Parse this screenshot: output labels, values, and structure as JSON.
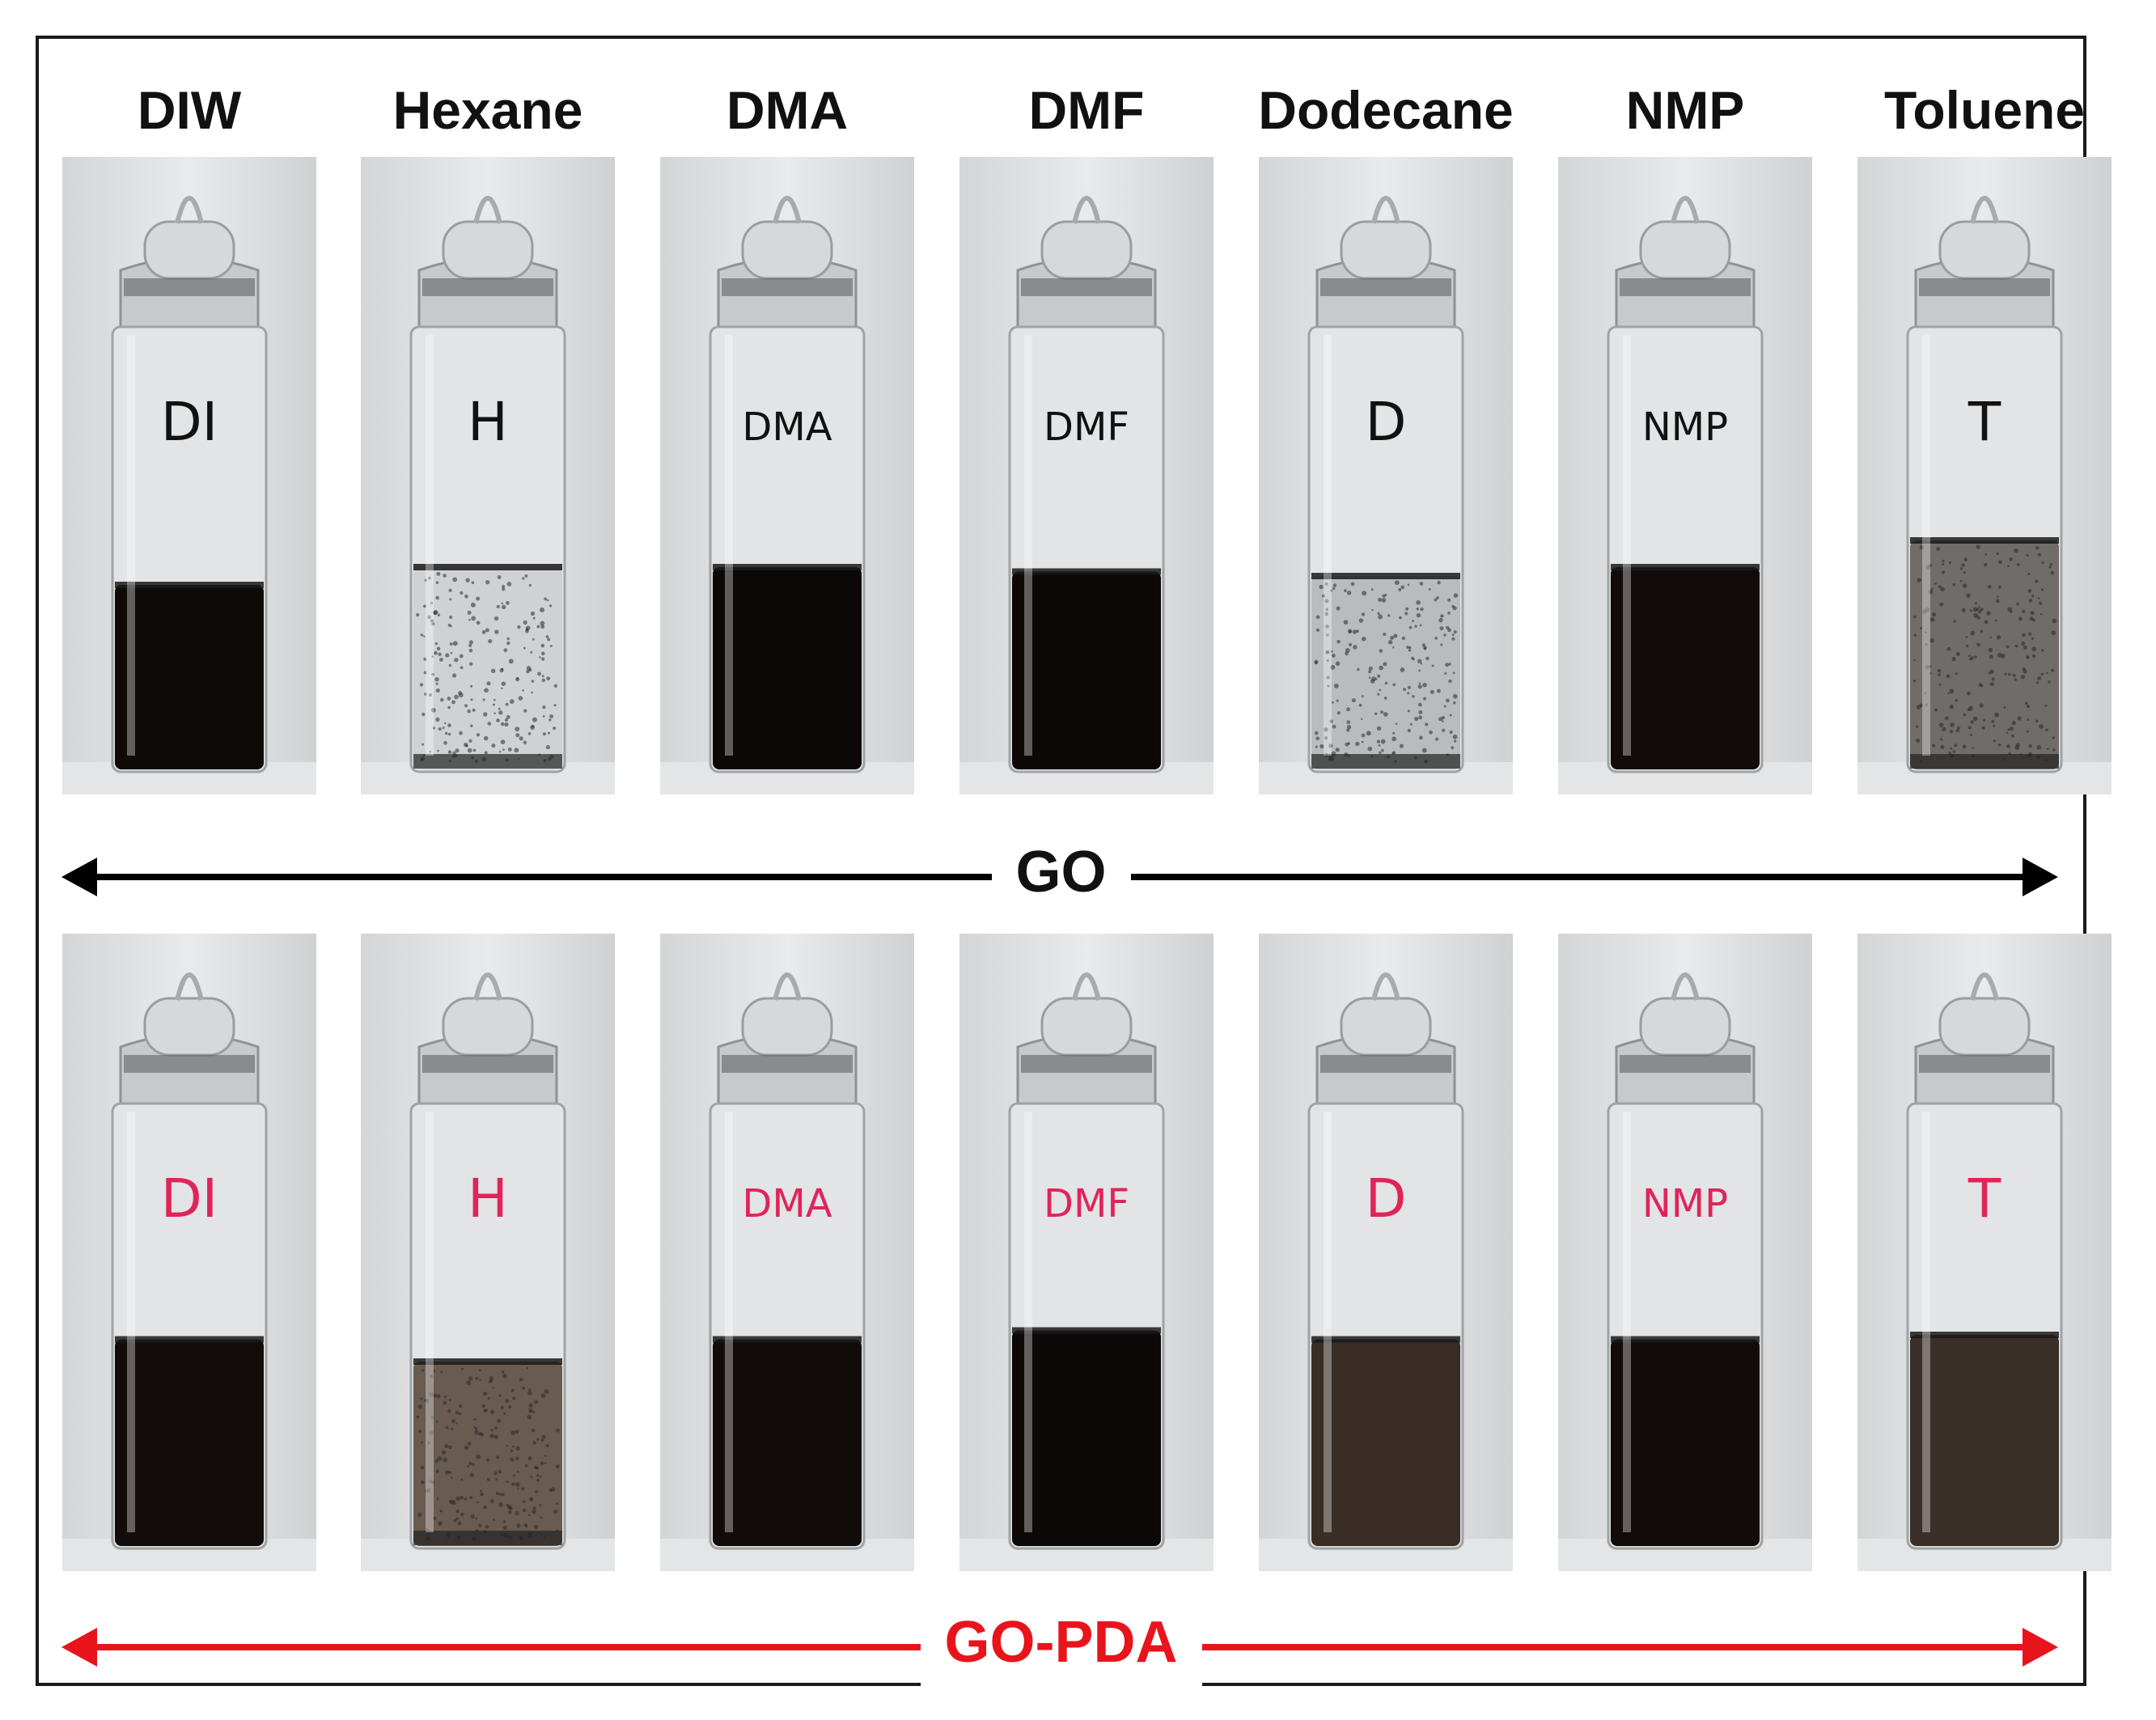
{
  "solvents": [
    "DIW",
    "Hexane",
    "DMA",
    "DMF",
    "Dodecane",
    "NMP",
    "Toluene"
  ],
  "rows": [
    {
      "label": "GO",
      "color": "#000000",
      "vials": [
        {
          "mark": "DI",
          "ink": "#111111",
          "liquid": "#0e0a08",
          "cloudy": false,
          "fill": 0.42
        },
        {
          "mark": "H",
          "ink": "#111111",
          "liquid": "#cfd2d3",
          "cloudy": true,
          "fill": 0.46
        },
        {
          "mark": "DMA",
          "ink": "#111111",
          "liquid": "#0c0807",
          "cloudy": false,
          "fill": 0.46
        },
        {
          "mark": "DMF",
          "ink": "#111111",
          "liquid": "#0c0807",
          "cloudy": false,
          "fill": 0.45
        },
        {
          "mark": "D",
          "ink": "#111111",
          "liquid": "#b8bcbd",
          "cloudy": true,
          "fill": 0.44
        },
        {
          "mark": "NMP",
          "ink": "#111111",
          "liquid": "#110c0a",
          "cloudy": false,
          "fill": 0.46
        },
        {
          "mark": "T",
          "ink": "#111111",
          "liquid": "#6f6c69",
          "cloudy": true,
          "fill": 0.52
        }
      ]
    },
    {
      "label": "GO-PDA",
      "color": "#e8141c",
      "vials": [
        {
          "mark": "DI",
          "ink": "#e0245a",
          "liquid": "#120c0a",
          "cloudy": false,
          "fill": 0.47
        },
        {
          "mark": "H",
          "ink": "#e0245a",
          "liquid": "#6a5b50",
          "cloudy": true,
          "fill": 0.42
        },
        {
          "mark": "DMA",
          "ink": "#e0245a",
          "liquid": "#110b09",
          "cloudy": false,
          "fill": 0.47
        },
        {
          "mark": "DMF",
          "ink": "#e0245a",
          "liquid": "#0c0908",
          "cloudy": false,
          "fill": 0.49
        },
        {
          "mark": "D",
          "ink": "#e0245a",
          "liquid": "#3a2d26",
          "cloudy": false,
          "fill": 0.47
        },
        {
          "mark": "NMP",
          "ink": "#e0245a",
          "liquid": "#110c0a",
          "cloudy": false,
          "fill": 0.47
        },
        {
          "mark": "T",
          "ink": "#e0245a",
          "liquid": "#3a2f29",
          "cloudy": false,
          "fill": 0.48
        }
      ]
    }
  ]
}
